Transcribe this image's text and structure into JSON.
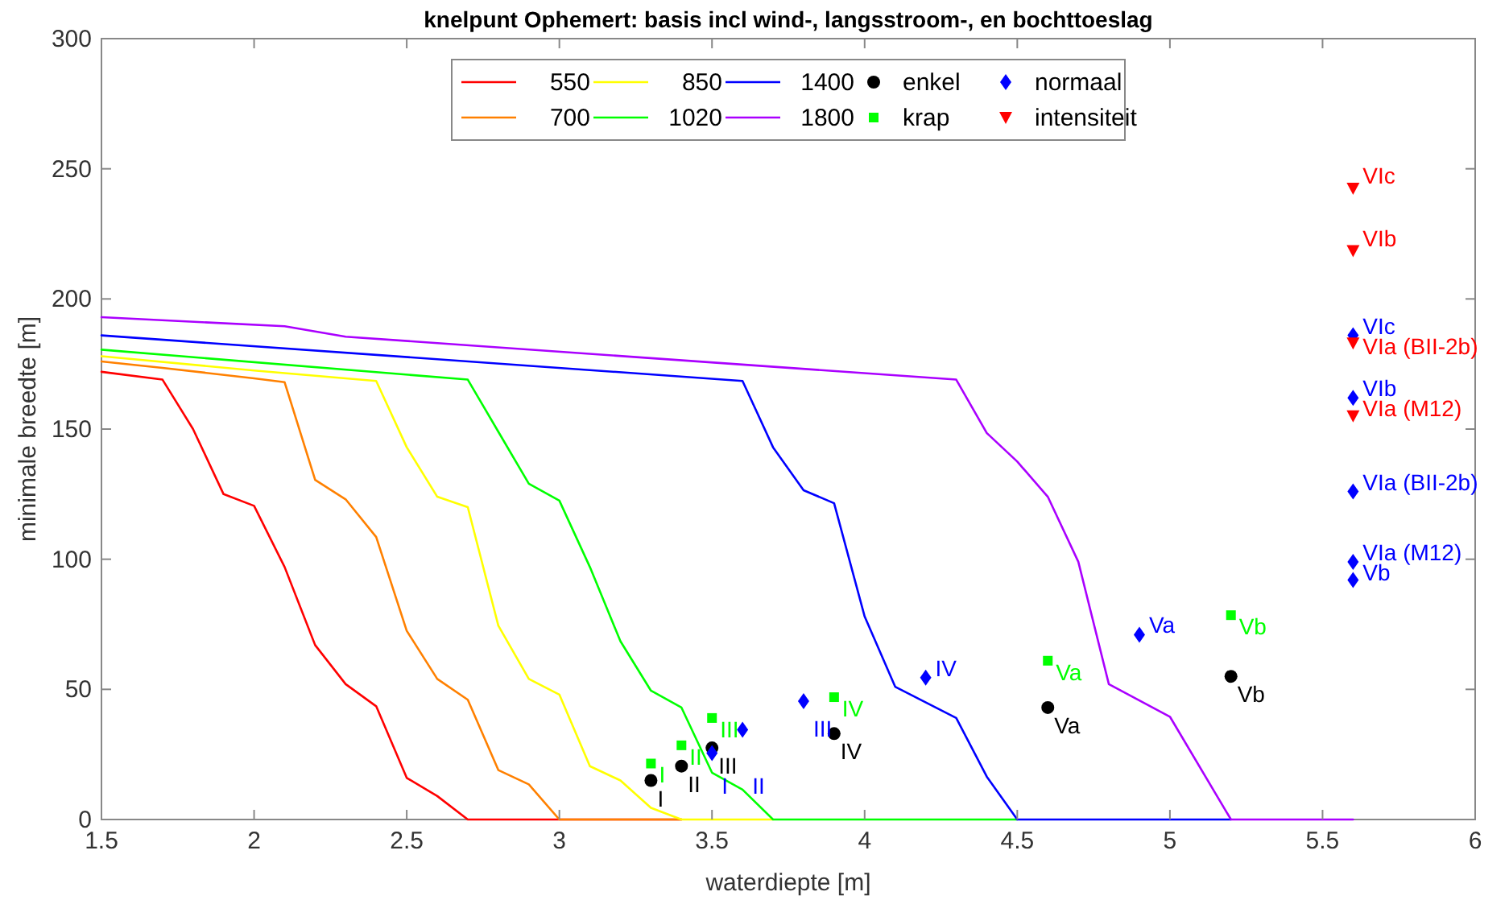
{
  "chart_data": {
    "type": "line",
    "title": "knelpunt Ophemert: basis incl wind-, langsstroom-, en bochttoeslag",
    "xlabel": "waterdiepte [m]",
    "ylabel": "minimale breedte [m]",
    "xlim": [
      1.5,
      6
    ],
    "ylim": [
      0,
      300
    ],
    "xticks": [
      1.5,
      2,
      2.5,
      3,
      3.5,
      4,
      4.5,
      5,
      5.5,
      6
    ],
    "yticks": [
      0,
      50,
      100,
      150,
      200,
      250,
      300
    ],
    "grid": false,
    "legend": "top",
    "series": [
      {
        "name": "550",
        "color": "#ff0000",
        "x": [
          1.5,
          1.7,
          1.8,
          1.9,
          2.0,
          2.1,
          2.2,
          2.3,
          2.4,
          2.5,
          2.6,
          2.7,
          3.4
        ],
        "values": [
          172,
          169,
          150,
          125,
          120.5,
          97,
          67,
          52,
          43.5,
          16,
          9,
          0,
          0
        ]
      },
      {
        "name": "700",
        "color": "#ff8000",
        "x": [
          1.5,
          1.7,
          2.0,
          2.1,
          2.2,
          2.3,
          2.4,
          2.5,
          2.6,
          2.7,
          2.8,
          2.9,
          3.0,
          3.4
        ],
        "values": [
          176,
          173.5,
          169.5,
          168,
          130.5,
          123,
          108.5,
          72.5,
          54,
          46,
          19,
          13.5,
          0,
          0
        ]
      },
      {
        "name": "850",
        "color": "#ffff00",
        "x": [
          1.5,
          2.0,
          2.4,
          2.5,
          2.6,
          2.7,
          2.8,
          2.9,
          3.0,
          3.1,
          3.2,
          3.3,
          3.4,
          3.7
        ],
        "values": [
          178,
          172.5,
          168.5,
          143,
          124,
          120,
          74.5,
          54,
          48,
          20.5,
          15,
          4.5,
          0,
          0
        ]
      },
      {
        "name": "1020",
        "color": "#00ff00",
        "x": [
          1.5,
          2.7,
          2.8,
          2.9,
          3.0,
          3.1,
          3.2,
          3.3,
          3.4,
          3.5,
          3.6,
          3.7,
          4.5
        ],
        "values": [
          180.5,
          169,
          149,
          129,
          122.5,
          97,
          68.5,
          49.5,
          43,
          18,
          11.5,
          0,
          0
        ]
      },
      {
        "name": "1400",
        "color": "#0000ff",
        "x": [
          1.5,
          3.6,
          3.7,
          3.8,
          3.9,
          4.0,
          4.1,
          4.3,
          4.4,
          4.5,
          5.2
        ],
        "values": [
          186,
          168.5,
          143,
          126.5,
          121.5,
          78,
          51,
          39,
          16.5,
          0,
          0
        ]
      },
      {
        "name": "1800",
        "color": "#aa00ff",
        "x": [
          1.5,
          2.1,
          2.2,
          2.3,
          4.3,
          4.4,
          4.5,
          4.6,
          4.7,
          4.8,
          5.0,
          5.2,
          5.6
        ],
        "values": [
          193,
          189.5,
          187.5,
          185.5,
          169,
          148.5,
          137.5,
          124,
          99,
          52,
          39.5,
          0,
          0
        ]
      },
      {
        "name": "enkel",
        "type": "scatter",
        "marker": "circle",
        "color": "#000000",
        "x": [
          3.3,
          3.4,
          3.5,
          3.9,
          4.6,
          5.2
        ],
        "values": [
          15,
          20.5,
          27.5,
          33,
          43,
          55
        ],
        "value_labels": [
          "I",
          "II",
          "III",
          "IV",
          "Va",
          "Vb"
        ]
      },
      {
        "name": "krap",
        "type": "scatter",
        "marker": "square",
        "color": "#00ff00",
        "x": [
          3.3,
          3.4,
          3.5,
          3.9,
          4.6,
          5.2
        ],
        "values": [
          21.5,
          28.5,
          39,
          47,
          61,
          78.5
        ],
        "value_labels": [
          "I",
          "II",
          "III",
          "IV",
          "Va",
          "Vb"
        ]
      },
      {
        "name": "normaal",
        "type": "scatter",
        "marker": "diamond",
        "color": "#0000ff",
        "x": [
          3.5,
          3.6,
          3.8,
          4.2,
          4.9,
          5.6,
          5.6,
          5.6,
          5.6,
          5.6
        ],
        "values": [
          25.5,
          34.5,
          45.5,
          54.5,
          71,
          186,
          162,
          126,
          99,
          92
        ],
        "value_labels": [
          "I",
          "II",
          "III",
          "IV",
          "Va",
          "VIc",
          "VIb",
          "VIa (BII-2b)",
          "VIa (M12)",
          "Vb"
        ]
      },
      {
        "name": "intensiteit",
        "type": "scatter",
        "marker": "triangle",
        "color": "#ff0000",
        "x": [
          5.6,
          5.6,
          5.6,
          5.6
        ],
        "values": [
          242.5,
          218.5,
          183,
          155
        ],
        "value_labels": [
          "VIc",
          "VIb",
          "VIa (BII-2b)",
          "VIa (M12)"
        ]
      }
    ]
  }
}
